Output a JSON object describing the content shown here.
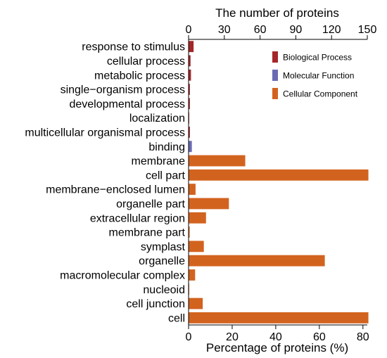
{
  "chart_data": {
    "type": "bar",
    "orientation": "horizontal",
    "title": "",
    "xlabel": "Percentage of proteins (%)",
    "x2label": "The number of proteins",
    "xlim": [
      0,
      82
    ],
    "x2lim": [
      0,
      150
    ],
    "xticks": [
      0,
      20,
      40,
      60,
      80
    ],
    "x2ticks": [
      0,
      30,
      60,
      90,
      120,
      150
    ],
    "legend_position": "top-right",
    "categories": [
      "response to stimulus",
      "cellular process",
      "metabolic process",
      "single−organism process",
      "developmental process",
      "localization",
      "multicellular organismal process",
      "binding",
      "membrane",
      "cell part",
      "membrane−enclosed lumen",
      "organelle part",
      "extracellular region",
      "membrane part",
      "symplast",
      "organelle",
      "macromolecular complex",
      "nucleoid",
      "cell junction",
      "cell"
    ],
    "values": [
      2.3,
      0.9,
      1.1,
      0.6,
      0.6,
      0.3,
      0.6,
      1.5,
      26,
      82.5,
      3.2,
      18.5,
      8,
      0.5,
      7,
      62.5,
      3,
      0.3,
      6.5,
      82.5
    ],
    "series": [
      {
        "name": "Biological Process",
        "color": "#a5262a",
        "indices": [
          0,
          1,
          2,
          3,
          4,
          5,
          6
        ]
      },
      {
        "name": "Molecular Function",
        "color": "#6b6bb5",
        "indices": [
          7
        ]
      },
      {
        "name": "Cellular Component",
        "color": "#d2631f",
        "indices": [
          8,
          9,
          10,
          11,
          12,
          13,
          14,
          15,
          16,
          17,
          18,
          19
        ]
      }
    ]
  }
}
